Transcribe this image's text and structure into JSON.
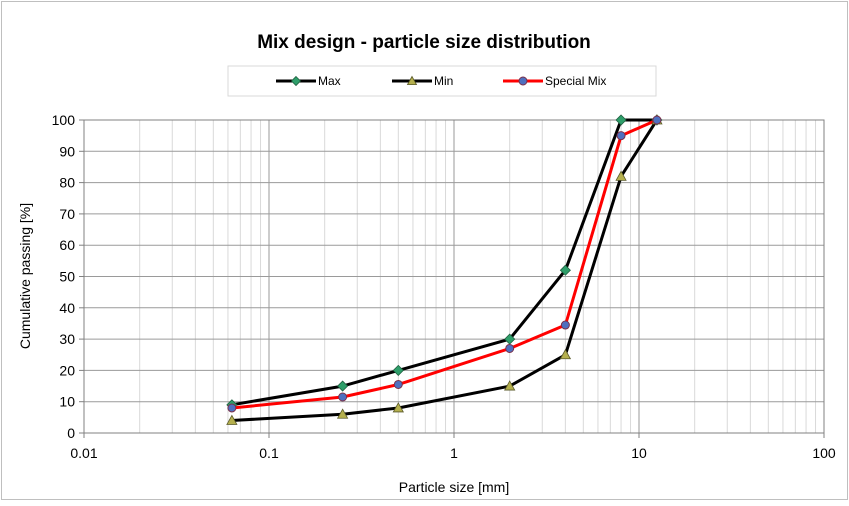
{
  "chart_data": {
    "type": "line",
    "title": "Mix design - particle size distribution",
    "xlabel": "Particle size [mm]",
    "ylabel": "Cumulative  passing [%]",
    "xscale": "log",
    "xlim": [
      0.01,
      100
    ],
    "ylim": [
      0,
      100
    ],
    "x_ticks": [
      0.01,
      0.1,
      1,
      10,
      100
    ],
    "x_tick_labels": [
      "0.01",
      "0.1",
      "1",
      "10",
      "100"
    ],
    "y_ticks": [
      0,
      10,
      20,
      30,
      40,
      50,
      60,
      70,
      80,
      90,
      100
    ],
    "y_tick_labels": [
      "0",
      "10",
      "20",
      "30",
      "40",
      "50",
      "60",
      "70",
      "80",
      "90",
      "100"
    ],
    "grid": true,
    "legend_position": "top",
    "series": [
      {
        "name": "Max",
        "color": "#000000",
        "marker": "diamond",
        "marker_color": "#2e9e6a",
        "points": [
          {
            "x": 0.063,
            "y": 9
          },
          {
            "x": 0.25,
            "y": 15
          },
          {
            "x": 0.5,
            "y": 20
          },
          {
            "x": 2,
            "y": 30
          },
          {
            "x": 4,
            "y": 52
          },
          {
            "x": 8,
            "y": 100
          },
          {
            "x": 12.5,
            "y": 100
          }
        ]
      },
      {
        "name": "Min",
        "color": "#000000",
        "marker": "triangle",
        "marker_color": "#b5b04e",
        "points": [
          {
            "x": 0.063,
            "y": 4
          },
          {
            "x": 0.25,
            "y": 6
          },
          {
            "x": 0.5,
            "y": 8
          },
          {
            "x": 2,
            "y": 15
          },
          {
            "x": 4,
            "y": 25
          },
          {
            "x": 8,
            "y": 82
          },
          {
            "x": 12.5,
            "y": 100
          }
        ]
      },
      {
        "name": "Special Mix",
        "color": "#ff0000",
        "marker": "circle",
        "marker_color": "#4f6fbf",
        "points": [
          {
            "x": 0.063,
            "y": 8
          },
          {
            "x": 0.25,
            "y": 11.5
          },
          {
            "x": 0.5,
            "y": 15.5
          },
          {
            "x": 2,
            "y": 27
          },
          {
            "x": 4,
            "y": 34.5
          },
          {
            "x": 8,
            "y": 95
          },
          {
            "x": 12.5,
            "y": 100
          }
        ]
      }
    ]
  }
}
